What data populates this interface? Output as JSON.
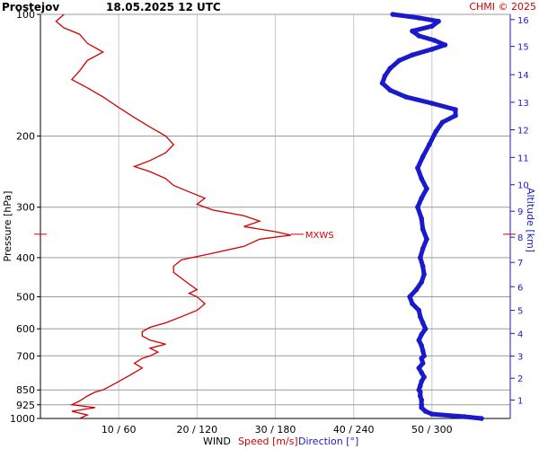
{
  "header": {
    "station": "Prostejov",
    "datetime": "18.05.2025 12 UTC",
    "credit": "CHMI © 2025"
  },
  "chart_data": {
    "type": "line",
    "title": "Prostejov    18.05.2025 12 UTC",
    "ylabel": "Pressure [hPa]",
    "y2label": "Altitude [km]",
    "xlabel_parts": [
      "WIND",
      "Speed [m/s]",
      "Direction [°]"
    ],
    "ylim": [
      1000,
      100
    ],
    "y_scale": "log",
    "pressure_ticks": [
      100,
      200,
      300,
      400,
      500,
      600,
      700,
      850,
      925,
      1000
    ],
    "altitude_ticks": [
      {
        "km": 1,
        "p": 900
      },
      {
        "km": 2,
        "p": 795
      },
      {
        "km": 3,
        "p": 701
      },
      {
        "km": 4,
        "p": 616
      },
      {
        "km": 5,
        "p": 540
      },
      {
        "km": 6,
        "p": 472
      },
      {
        "km": 7,
        "p": 411
      },
      {
        "km": 8,
        "p": 356
      },
      {
        "km": 9,
        "p": 307
      },
      {
        "km": 10,
        "p": 264
      },
      {
        "km": 11,
        "p": 226
      },
      {
        "km": 12,
        "p": 193
      },
      {
        "km": 13,
        "p": 165
      },
      {
        "km": 14,
        "p": 141
      },
      {
        "km": 15,
        "p": 120
      },
      {
        "km": 16,
        "p": 103
      }
    ],
    "x_ticks": [
      "10 / 60",
      "20 / 120",
      "30 / 180",
      "40 / 240",
      "50 / 300"
    ],
    "speed_range": [
      0,
      60
    ],
    "direction_range": [
      0,
      360
    ],
    "grid": true,
    "max_wind_marker": {
      "label": "MXWS",
      "p": 350
    },
    "series": [
      {
        "name": "Speed [m/s]",
        "color": "#d40000",
        "points": [
          [
            1000,
            5
          ],
          [
            980,
            6
          ],
          [
            960,
            4
          ],
          [
            940,
            7
          ],
          [
            925,
            4
          ],
          [
            905,
            5
          ],
          [
            880,
            6
          ],
          [
            860,
            7
          ],
          [
            850,
            8
          ],
          [
            830,
            9
          ],
          [
            810,
            10
          ],
          [
            790,
            11
          ],
          [
            770,
            12
          ],
          [
            750,
            13
          ],
          [
            730,
            12
          ],
          [
            710,
            13
          ],
          [
            700,
            14
          ],
          [
            685,
            15
          ],
          [
            670,
            14
          ],
          [
            655,
            16
          ],
          [
            640,
            14
          ],
          [
            625,
            13
          ],
          [
            610,
            13
          ],
          [
            595,
            14
          ],
          [
            580,
            16
          ],
          [
            560,
            18
          ],
          [
            540,
            20
          ],
          [
            520,
            21
          ],
          [
            500,
            20
          ],
          [
            490,
            19
          ],
          [
            480,
            20
          ],
          [
            465,
            19
          ],
          [
            450,
            18
          ],
          [
            435,
            17
          ],
          [
            420,
            17
          ],
          [
            405,
            18
          ],
          [
            390,
            22
          ],
          [
            375,
            26
          ],
          [
            360,
            28
          ],
          [
            352,
            32
          ],
          [
            345,
            30
          ],
          [
            335,
            26
          ],
          [
            325,
            28
          ],
          [
            315,
            26
          ],
          [
            305,
            22
          ],
          [
            295,
            20
          ],
          [
            285,
            21
          ],
          [
            275,
            19
          ],
          [
            265,
            17
          ],
          [
            255,
            16
          ],
          [
            245,
            14
          ],
          [
            238,
            12
          ],
          [
            230,
            14
          ],
          [
            220,
            16
          ],
          [
            210,
            17
          ],
          [
            200,
            16
          ],
          [
            190,
            14
          ],
          [
            180,
            12
          ],
          [
            170,
            10
          ],
          [
            160,
            8
          ],
          [
            152,
            6
          ],
          [
            145,
            4
          ],
          [
            138,
            5
          ],
          [
            130,
            6
          ],
          [
            124,
            8
          ],
          [
            118,
            6
          ],
          [
            112,
            5
          ],
          [
            108,
            3
          ],
          [
            104,
            2
          ],
          [
            100,
            3
          ]
        ]
      },
      {
        "name": "Direction [°]",
        "color": "#1a1acc",
        "points": [
          [
            1000,
            338
          ],
          [
            990,
            325
          ],
          [
            975,
            300
          ],
          [
            960,
            295
          ],
          [
            940,
            292
          ],
          [
            925,
            292
          ],
          [
            900,
            292
          ],
          [
            880,
            291
          ],
          [
            860,
            291
          ],
          [
            850,
            290
          ],
          [
            830,
            291
          ],
          [
            810,
            292
          ],
          [
            790,
            294
          ],
          [
            770,
            292
          ],
          [
            750,
            290
          ],
          [
            730,
            293
          ],
          [
            710,
            292
          ],
          [
            700,
            294
          ],
          [
            680,
            293
          ],
          [
            660,
            292
          ],
          [
            640,
            290
          ],
          [
            620,
            292
          ],
          [
            600,
            295
          ],
          [
            580,
            293
          ],
          [
            560,
            291
          ],
          [
            540,
            290
          ],
          [
            520,
            285
          ],
          [
            500,
            283
          ],
          [
            480,
            288
          ],
          [
            460,
            292
          ],
          [
            440,
            294
          ],
          [
            420,
            293
          ],
          [
            400,
            291
          ],
          [
            380,
            293
          ],
          [
            360,
            296
          ],
          [
            340,
            293
          ],
          [
            320,
            292
          ],
          [
            300,
            289
          ],
          [
            285,
            292
          ],
          [
            270,
            296
          ],
          [
            255,
            292
          ],
          [
            240,
            289
          ],
          [
            225,
            293
          ],
          [
            210,
            298
          ],
          [
            195,
            303
          ],
          [
            185,
            308
          ],
          [
            178,
            318
          ],
          [
            172,
            318
          ],
          [
            166,
            300
          ],
          [
            160,
            280
          ],
          [
            154,
            268
          ],
          [
            148,
            262
          ],
          [
            142,
            264
          ],
          [
            136,
            268
          ],
          [
            130,
            275
          ],
          [
            126,
            285
          ],
          [
            122,
            300
          ],
          [
            119,
            310
          ],
          [
            116,
            302
          ],
          [
            113,
            290
          ],
          [
            110,
            285
          ],
          [
            107,
            300
          ],
          [
            104,
            305
          ],
          [
            102,
            290
          ],
          [
            100,
            270
          ]
        ]
      }
    ]
  }
}
